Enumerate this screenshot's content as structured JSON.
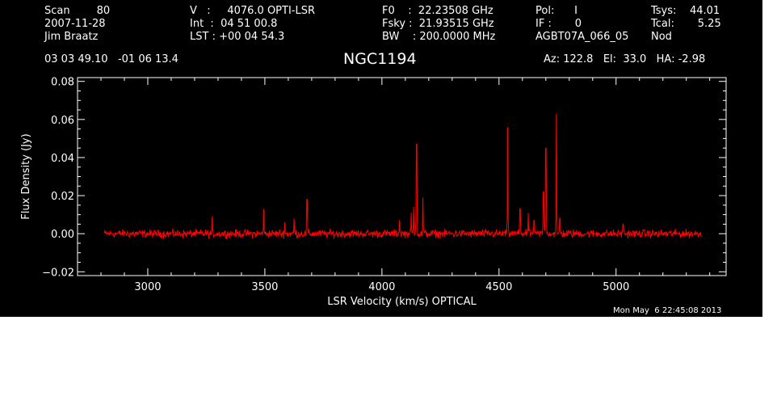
{
  "header": {
    "col1": [
      "Scan        80",
      "2007-11-28",
      "Jim Braatz"
    ],
    "col2": [
      "V   :     4076.0 OPTI-LSR",
      "Int  :  04 51 00.8",
      "LST : +00 04 54.3"
    ],
    "col3": [
      "F0    :  22.23508 GHz",
      "Fsky :  21.93515 GHz",
      "BW    : 200.0000 MHz"
    ],
    "col4": [
      "Pol:      I",
      "IF :       0",
      "AGBT07A_066_05"
    ],
    "col5": [
      "Tsys:    44.01",
      "Tcal:       5.25",
      "Nod"
    ],
    "coords": "03 03 49.10   -01 06 13.4",
    "object": "NGC1194",
    "pointing": "Az: 122.8   El:  33.0   HA: -2.98"
  },
  "timestamp": "Mon May  6 22:45:08 2013",
  "colors": {
    "background": "#000000",
    "foreground": "#ffffff",
    "trace": "#ff0000"
  },
  "chart_data": {
    "type": "line",
    "title": "NGC1194",
    "xlabel": "LSR Velocity (km/s) OPTICAL",
    "ylabel": "Flux Density (Jy)",
    "xlim": [
      2700,
      5470
    ],
    "ylim": [
      -0.022,
      0.082
    ],
    "xticks": [
      3000,
      3500,
      4000,
      4500,
      5000
    ],
    "xtick_labels": [
      "3000",
      "3500",
      "4000",
      "4500",
      "5000"
    ],
    "yticks": [
      -0.02,
      0.0,
      0.02,
      0.04,
      0.06,
      0.08
    ],
    "ytick_labels": [
      "−0.02",
      "0.00",
      "0.02",
      "0.04",
      "0.06",
      "0.08"
    ],
    "grid": false,
    "noise_rms": 0.0015,
    "x_range_data": [
      2815,
      5365
    ],
    "series": [
      {
        "color": "#ff0000",
        "peaks": [
          {
            "x": 3275,
            "y": 0.009
          },
          {
            "x": 3495,
            "y": 0.013
          },
          {
            "x": 3585,
            "y": 0.006
          },
          {
            "x": 3625,
            "y": 0.008
          },
          {
            "x": 3680,
            "y": 0.018
          },
          {
            "x": 4075,
            "y": 0.007
          },
          {
            "x": 4125,
            "y": 0.011
          },
          {
            "x": 4135,
            "y": 0.014
          },
          {
            "x": 4148,
            "y": 0.047
          },
          {
            "x": 4175,
            "y": 0.019
          },
          {
            "x": 4537,
            "y": 0.056
          },
          {
            "x": 4590,
            "y": 0.013
          },
          {
            "x": 4625,
            "y": 0.011
          },
          {
            "x": 4650,
            "y": 0.007
          },
          {
            "x": 4690,
            "y": 0.022
          },
          {
            "x": 4700,
            "y": 0.045
          },
          {
            "x": 4745,
            "y": 0.063
          },
          {
            "x": 4760,
            "y": 0.008
          },
          {
            "x": 5030,
            "y": 0.005
          }
        ]
      }
    ]
  }
}
